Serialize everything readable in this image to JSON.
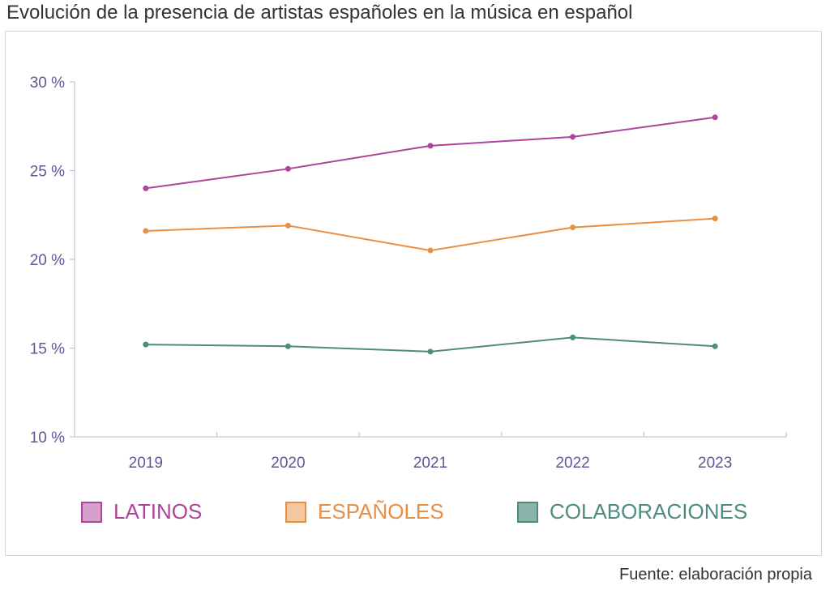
{
  "chart_data": {
    "type": "line",
    "title": "Evolución de la presencia de artistas españoles en la música en español",
    "source": "Fuente: elaboración propia",
    "x": [
      "2019",
      "2020",
      "2021",
      "2022",
      "2023"
    ],
    "yticks": [
      "10 %",
      "15 %",
      "20 %",
      "25 %",
      "30 %"
    ],
    "ylim": [
      10,
      30
    ],
    "grid": false,
    "legend_position": "bottom",
    "series": [
      {
        "name": "LATINOS",
        "values": [
          24.0,
          25.1,
          26.4,
          26.9,
          28.0
        ],
        "color": "#b0449a",
        "fill": "#d79fcb"
      },
      {
        "name": "ESPAÑOLES",
        "values": [
          21.6,
          21.9,
          20.5,
          21.8,
          22.3
        ],
        "color": "#e88f46",
        "fill": "#f4c9a1"
      },
      {
        "name": "COLABORACIONES",
        "values": [
          15.2,
          15.1,
          14.8,
          15.6,
          15.1
        ],
        "color": "#4f8b7e",
        "fill": "#8bb4aa"
      }
    ]
  }
}
